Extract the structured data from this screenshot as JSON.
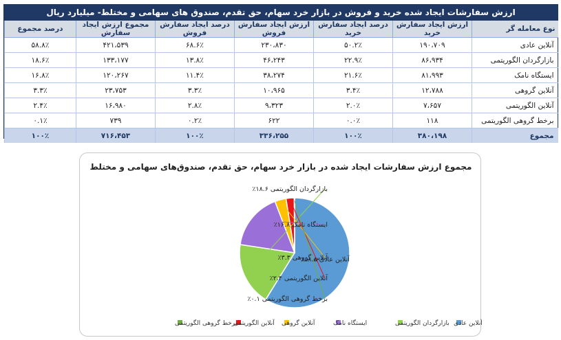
{
  "table": {
    "title": "ارزش سفارشات ایجاد شده خرید و فروش در بازار خرد سهام، حق تقدم، صندوق های سهامی و مختلط- میلیارد ریال",
    "headers": [
      "نوع معامله گر",
      "ارزش ایجاد سفارش خرید",
      "درصد ایجاد سفارش خرید",
      "ارزش ایجاد سفارش فروش",
      "درصد ایجاد سفارش فروش",
      "مجموع ارزش ایجاد سفارش",
      "درصد مجموع"
    ],
    "rows": [
      [
        "آنلاین عادی",
        "۱۹۰،۷۰۹",
        "۵۰.۲٪",
        "۲۳۰،۸۳۰",
        "۶۸.۶٪",
        "۴۲۱،۵۳۹",
        "۵۸.۸٪"
      ],
      [
        "بازارگردان الگوریتمی",
        "۸۶،۹۳۴",
        "۲۲.۹٪",
        "۴۶،۲۴۳",
        "۱۳.۸٪",
        "۱۳۳،۱۷۷",
        "۱۸.۶٪"
      ],
      [
        "ایستگاه نامک",
        "۸۱،۹۹۳",
        "۲۱.۶٪",
        "۳۸،۲۷۴",
        "۱۱.۴٪",
        "۱۲۰،۲۶۷",
        "۱۶.۸٪"
      ],
      [
        "آنلاین گروهی",
        "۱۲،۷۸۸",
        "۳.۴٪",
        "۱۰،۹۶۵",
        "۳.۳٪",
        "۲۳،۷۵۳",
        "۳.۳٪"
      ],
      [
        "آنلاین الگوریتمی",
        "۷،۶۵۷",
        "۲.۰٪",
        "۹،۳۲۳",
        "۲.۸٪",
        "۱۶،۹۸۰",
        "۲.۴٪"
      ],
      [
        "برخط گروهی الگوریتمی",
        "۱۱۸",
        "۰.۰٪",
        "۶۲۲",
        "۰.۲٪",
        "۷۳۹",
        "۰.۱٪"
      ]
    ],
    "total": [
      "مجموع",
      "۳۸۰،۱۹۸",
      "۱۰۰٪",
      "۳۳۶،۲۵۵",
      "۱۰۰٪",
      "۷۱۶،۴۵۳",
      "۱۰۰٪"
    ]
  },
  "chart_data": {
    "type": "pie",
    "title": "مجموع ارزش سفارشات ایجاد شده در بازار خرد سهام، حق تقدم، صندوق‌های سهامی و مختلط",
    "slices": [
      {
        "name": "آنلاین عادی",
        "value": 58.8,
        "label": "آنلاین عادی ۵۸.۸٪",
        "color": "#5b9bd5"
      },
      {
        "name": "بازارگردان الگوریتمی",
        "value": 18.6,
        "label": "بازارگردان الگوریتمی ۱۸.۶٪",
        "color": "#92d050"
      },
      {
        "name": "ایستگاه نامک",
        "value": 16.8,
        "label": "ایستگاه نامک ۱۶.۸٪",
        "color": "#9b6fd8"
      },
      {
        "name": "آنلاین گروهی",
        "value": 3.3,
        "label": "آنلاین گروهی ۳.۳٪",
        "color": "#ffc000"
      },
      {
        "name": "آنلاین الگوریتمی",
        "value": 2.4,
        "label": "آنلاین الگوریتمی ۲.۴٪",
        "color": "#e8161b"
      },
      {
        "name": "برخط گروهی الگوریتمی",
        "value": 0.1,
        "label": "برخط گروهی الگوریتمی ۰.۱٪",
        "color": "#70ad47"
      }
    ],
    "legend_position": "bottom"
  }
}
